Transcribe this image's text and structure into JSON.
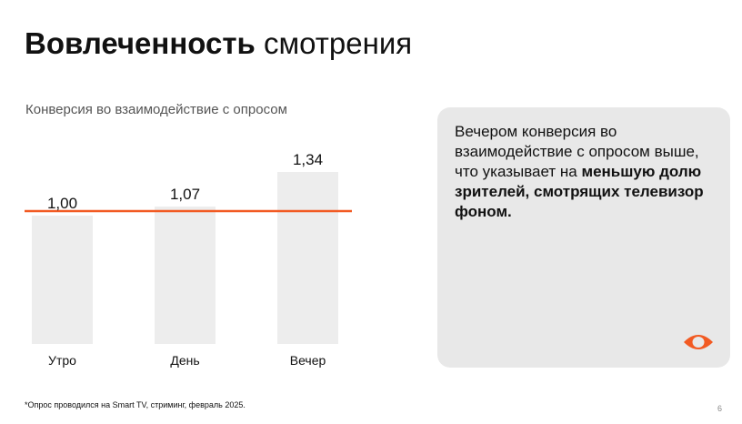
{
  "header": {
    "title_bold": "Вовлеченность",
    "title_rest": "смотрения"
  },
  "chart_data": {
    "type": "bar",
    "title": "Конверсия во взаимодействие с опросом",
    "categories": [
      "Утро",
      "День",
      "Вечер"
    ],
    "values": [
      1.0,
      1.07,
      1.34
    ],
    "value_labels": [
      "1,00",
      "1,07",
      "1,34"
    ],
    "reference_line": 1.0,
    "ylim": [
      0,
      1.34
    ],
    "grid": false,
    "colors": {
      "bar": "#ededed",
      "reference_line": "#f25a22"
    }
  },
  "panel": {
    "text_plain": "Вечером конверсия во взаимодействие с опросом выше, что указывает на",
    "text_bold": "меньшую долю зрителей, смотрящих телевизор фоном.",
    "icon": "eye-logo-icon",
    "icon_color": "#f25a22"
  },
  "footer": {
    "footnote": "*Опрос проводился на Smart TV, стриминг, февраль 2025.",
    "page_number": "6"
  }
}
